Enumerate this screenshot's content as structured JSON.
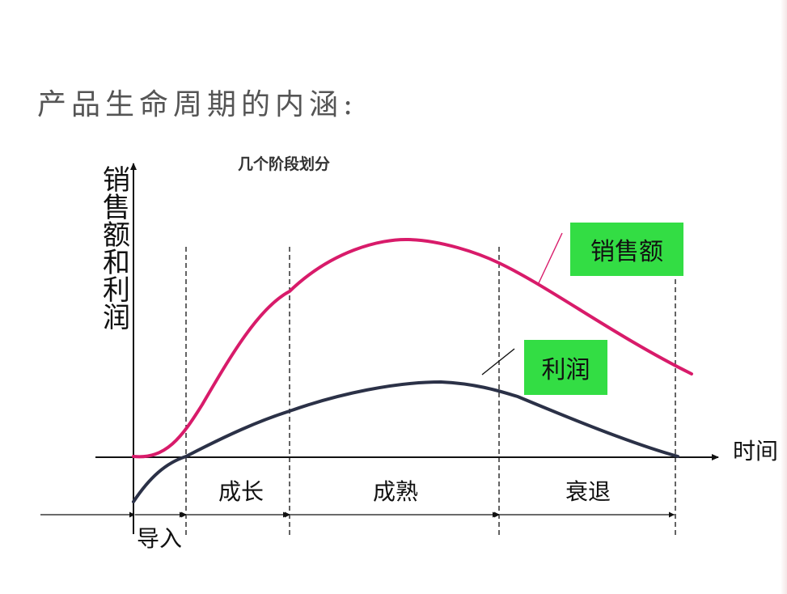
{
  "title": "产品生命周期的内涵:",
  "subtitle": "几个阶段划分",
  "axes": {
    "y_label": "销售额和利润",
    "x_label": "时间"
  },
  "legend": {
    "sales": "销售额",
    "profit": "利润"
  },
  "stages": {
    "intro": "导入",
    "growth": "成长",
    "maturity": "成熟",
    "decline": "衰退"
  },
  "colors": {
    "sales_curve": "#d81b6a",
    "profit_curve": "#2b3147",
    "legend_bg": "#33dd44",
    "axis": "#111111"
  }
}
